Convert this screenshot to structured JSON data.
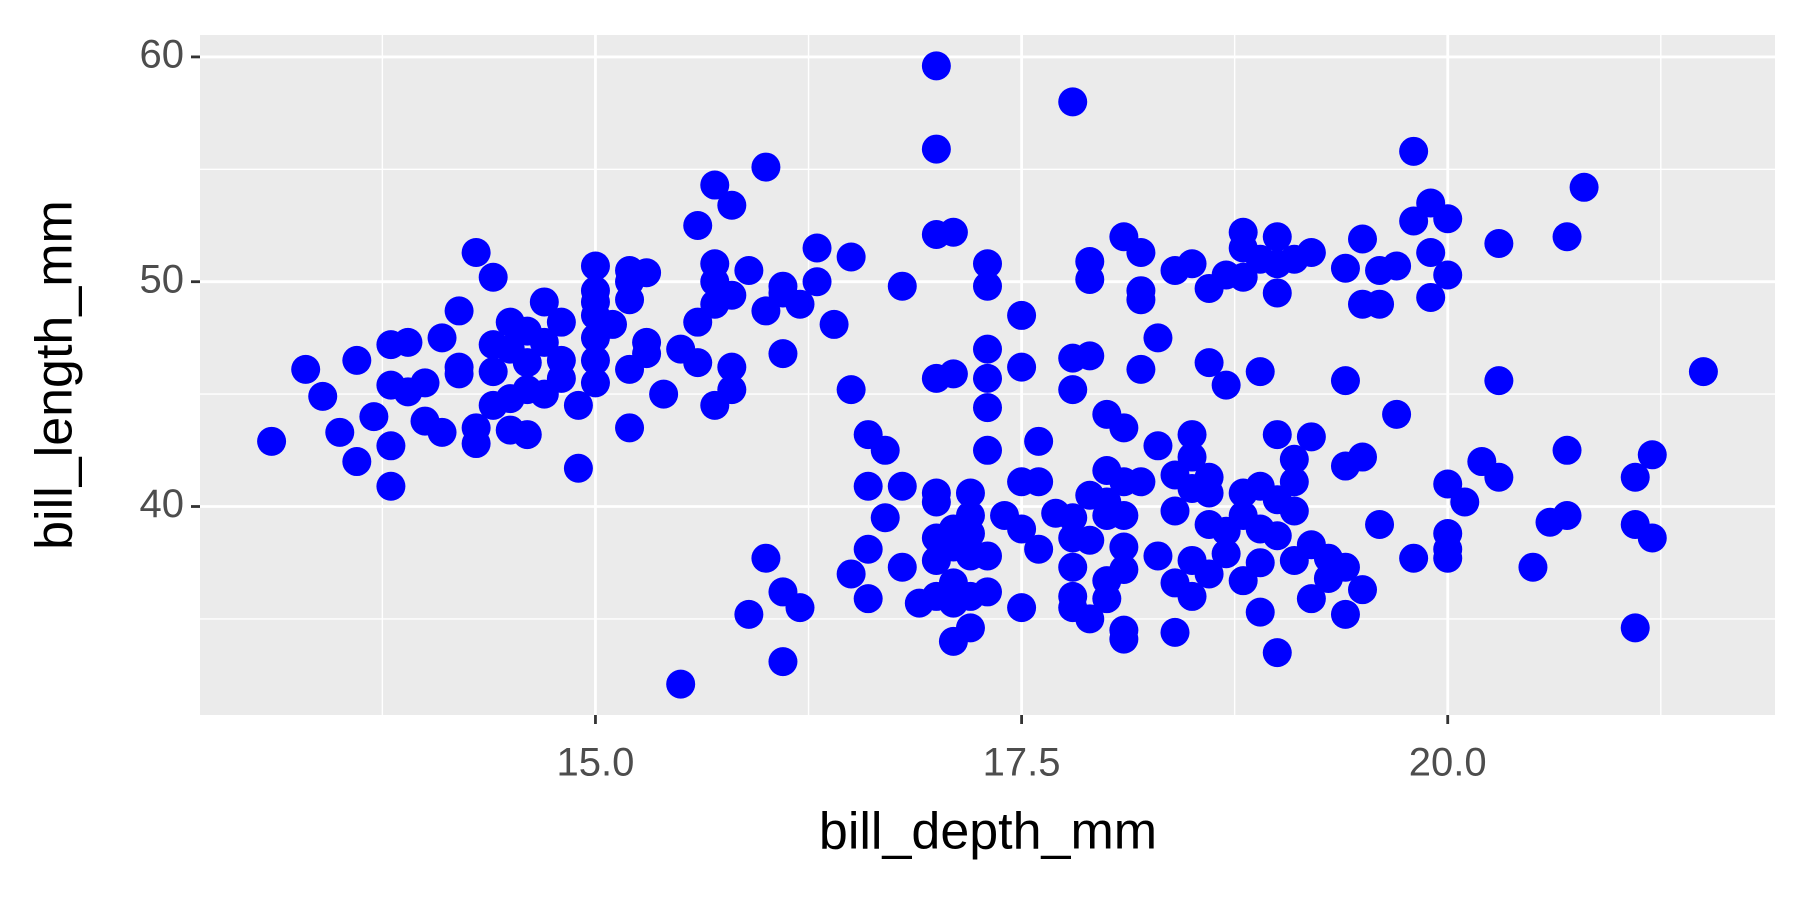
{
  "chart_data": {
    "type": "scatter",
    "x_label": "bill_depth_mm",
    "y_label": "bill_length_mm",
    "color": "blue",
    "grid": true,
    "xlim": [
      12.68,
      21.92
    ],
    "ylim": [
      30.725,
      60.975
    ],
    "xticks": [
      {
        "value": 15,
        "label": "15.0"
      },
      {
        "value": 17.5,
        "label": "17.5"
      },
      {
        "value": 20,
        "label": "20.0"
      }
    ],
    "yticks": [
      40,
      50,
      60
    ],
    "x": [
      13.1,
      13.3,
      13.4,
      13.5,
      13.6,
      13.6,
      13.7,
      13.8,
      13.8,
      13.8,
      13.8,
      13.9,
      13.9,
      14.0,
      14.0,
      14.1,
      14.1,
      14.2,
      14.2,
      14.3,
      14.3,
      14.3,
      14.4,
      14.4,
      14.4,
      14.5,
      14.5,
      14.5,
      14.6,
      14.6,
      14.6,
      14.7,
      14.7,
      14.7,
      14.8,
      14.8,
      14.8,
      14.9,
      14.9,
      15.0,
      15.0,
      15.0,
      15.2,
      15.0,
      15.0,
      15.0,
      15.0,
      15.1,
      15.2,
      15.2,
      15.2,
      15.3,
      15.3,
      15.3,
      15.2,
      15.5,
      15.4,
      15.6,
      15.6,
      15.7,
      15.6,
      15.7,
      15.7,
      15.7,
      15.7,
      15.8,
      15.8,
      15.8,
      15.9,
      16.0,
      16.0,
      16.1,
      16.1,
      16.2,
      16.3,
      16.3,
      16.4,
      16.5,
      16.5,
      16.1,
      15.8,
      14.4,
      14.6,
      14.5,
      14.2,
      17.0,
      17.0,
      17.0,
      17.1,
      17.8,
      17.3,
      17.3,
      17.5,
      17.3,
      17.3,
      17.3,
      17.5,
      16.8,
      17.0,
      17.1,
      17.8,
      17.8,
      17.9,
      17.9,
      17.9,
      18.1,
      18.2,
      18.2,
      18.2,
      18.3,
      18.2,
      18.4,
      18.5,
      18.6,
      18.6,
      18.7,
      18.7,
      18.8,
      18.8,
      18.9,
      18.8,
      18.9,
      19.0,
      19.0,
      19.0,
      19.1,
      19.2,
      19.4,
      19.4,
      19.5,
      19.5,
      19.6,
      19.6,
      19.7,
      19.7,
      19.8,
      19.8,
      19.9,
      19.9,
      19.9,
      20.0,
      20.0,
      20.3,
      20.3,
      20.7,
      20.8,
      21.5,
      19.4,
      19.5,
      19.4,
      19.4,
      19.5,
      19.6,
      19.8,
      20.0,
      20.0,
      20.0,
      20.0,
      20.1,
      20.2,
      20.3,
      20.5,
      20.6,
      20.7,
      20.7,
      21.1,
      21.1,
      21.1,
      21.2,
      21.2,
      16.0,
      15.9,
      16.1,
      16.2,
      16.1,
      15.5,
      16.6,
      16.5,
      16.6,
      16.6,
      16.6,
      16.7,
      16.7,
      16.8,
      16.8,
      16.9,
      17.0,
      17.0,
      17.0,
      17.0,
      17.0,
      17.1,
      17.1,
      17.1,
      17.1,
      17.1,
      17.2,
      17.2,
      17.2,
      17.2,
      17.2,
      17.2,
      17.3,
      17.3,
      17.3,
      17.4,
      17.5,
      17.5,
      17.5,
      17.6,
      17.6,
      17.6,
      17.7,
      17.8,
      17.8,
      17.8,
      17.8,
      17.8,
      17.9,
      17.9,
      17.9,
      18.0,
      18.0,
      18.0,
      18.0,
      18.0,
      18.0,
      18.1,
      18.1,
      18.1,
      18.1,
      18.1,
      18.1,
      18.1,
      18.2,
      18.3,
      18.3,
      18.4,
      18.4,
      18.4,
      18.4,
      18.5,
      18.5,
      18.5,
      18.5,
      18.5,
      18.6,
      18.6,
      18.6,
      18.6,
      18.7,
      18.7,
      18.8,
      18.8,
      18.8,
      18.9,
      18.9,
      18.9,
      18.9,
      19.0,
      19.0,
      19.0,
      19.0,
      19.1,
      19.1,
      19.1,
      19.1,
      19.2,
      19.2,
      19.2,
      19.3,
      19.3
    ],
    "values": [
      42.9,
      46.1,
      44.9,
      43.3,
      46.5,
      42.0,
      44.0,
      47.2,
      45.4,
      42.7,
      40.9,
      47.3,
      45.1,
      45.5,
      43.8,
      43.3,
      47.5,
      48.7,
      46.2,
      51.3,
      43.5,
      42.8,
      46.0,
      50.2,
      44.5,
      48.2,
      47.0,
      43.4,
      46.4,
      45.2,
      43.2,
      49.1,
      47.3,
      45.0,
      48.2,
      46.5,
      45.7,
      44.5,
      41.7,
      49.1,
      46.5,
      45.5,
      46.1,
      50.7,
      49.6,
      48.5,
      47.5,
      48.1,
      50.0,
      50.5,
      49.2,
      50.4,
      47.3,
      46.8,
      43.5,
      47.0,
      45.0,
      46.4,
      52.5,
      54.3,
      48.2,
      44.5,
      50.8,
      50.0,
      49.0,
      53.4,
      46.2,
      45.2,
      50.5,
      55.1,
      48.7,
      49.8,
      46.8,
      49.0,
      51.5,
      50.0,
      48.1,
      51.1,
      45.2,
      49.5,
      49.4,
      47.2,
      47.8,
      44.8,
      45.9,
      59.6,
      55.9,
      52.1,
      52.2,
      58.0,
      50.8,
      49.8,
      48.5,
      47.0,
      45.7,
      44.4,
      46.2,
      49.8,
      45.7,
      45.9,
      46.6,
      45.2,
      46.7,
      50.9,
      50.1,
      52.0,
      51.3,
      49.6,
      49.2,
      47.5,
      46.1,
      50.5,
      50.8,
      49.7,
      46.4,
      45.4,
      50.3,
      51.5,
      52.2,
      51.0,
      50.2,
      46.0,
      52.0,
      50.8,
      49.5,
      51.0,
      51.3,
      50.6,
      45.6,
      51.9,
      49.0,
      50.5,
      49.0,
      50.7,
      44.1,
      55.8,
      52.7,
      53.5,
      51.3,
      49.3,
      52.8,
      50.3,
      51.7,
      45.6,
      52.0,
      54.2,
      46.0,
      35.2,
      36.3,
      37.3,
      41.8,
      42.2,
      39.2,
      37.7,
      41.0,
      38.8,
      38.1,
      37.7,
      40.2,
      42.0,
      41.3,
      37.3,
      39.3,
      42.5,
      39.6,
      41.3,
      39.2,
      34.6,
      42.3,
      38.6,
      37.7,
      35.2,
      36.2,
      35.5,
      33.1,
      32.1,
      38.1,
      37.0,
      35.9,
      40.9,
      43.2,
      42.5,
      39.5,
      40.9,
      37.3,
      35.7,
      40.6,
      40.2,
      38.6,
      37.6,
      36.0,
      35.7,
      39.0,
      38.2,
      36.6,
      34.0,
      40.6,
      39.6,
      38.8,
      37.8,
      36.0,
      34.6,
      42.5,
      37.8,
      36.2,
      39.6,
      41.1,
      39.0,
      35.5,
      42.9,
      41.1,
      38.1,
      39.7,
      39.5,
      38.6,
      37.3,
      36.0,
      35.5,
      40.5,
      38.5,
      35.0,
      41.6,
      40.2,
      39.6,
      44.1,
      36.7,
      35.9,
      43.5,
      41.1,
      39.6,
      38.2,
      37.2,
      34.5,
      34.1,
      41.1,
      42.7,
      37.8,
      41.4,
      39.8,
      36.6,
      34.4,
      43.2,
      42.2,
      40.8,
      37.6,
      36.0,
      41.3,
      40.6,
      39.2,
      37.0,
      38.9,
      37.9,
      40.6,
      39.6,
      36.7,
      40.9,
      39.0,
      37.5,
      35.3,
      43.2,
      40.3,
      38.7,
      33.5,
      42.1,
      41.1,
      39.8,
      37.6,
      43.1,
      38.3,
      35.9,
      37.7,
      36.8
    ]
  }
}
